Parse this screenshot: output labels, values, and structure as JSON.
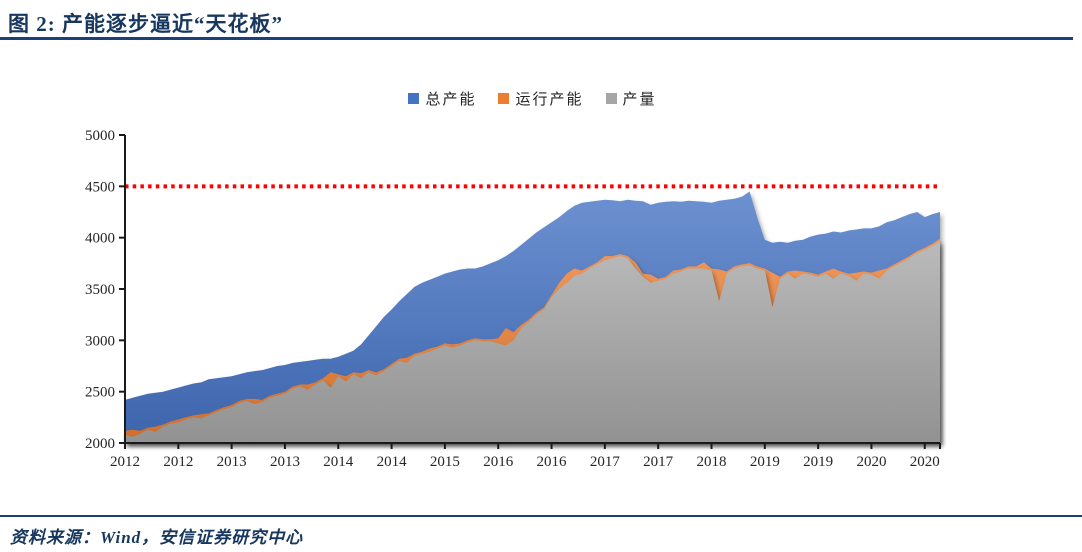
{
  "title": {
    "text": "图 2: 产能逐步逼近“天花板”"
  },
  "colors": {
    "title_text": "#17375e",
    "rule_navy": "#1e3f7d",
    "axis": "#1a1a1a",
    "tick_label": "#262626",
    "reference_red": "#ff0000",
    "series_blue": "#4472C4",
    "series_orange": "#ED7D31",
    "series_gray": "#A6A6A6"
  },
  "legend": [
    {
      "label": "总产能",
      "color": "#4472C4"
    },
    {
      "label": "运行产能",
      "color": "#ED7D31"
    },
    {
      "label": "产量",
      "color": "#A6A6A6"
    }
  ],
  "source": {
    "text": "资料来源：Wind，安信证券研究中心"
  },
  "chart_data": {
    "type": "area",
    "title": "产能逐步逼近“天花板”",
    "legend_position": "top",
    "grid": false,
    "x_start": "2012-01",
    "x_freq": "monthly",
    "x_tick_interval_months": 7,
    "x_tick_labels": [
      "2012",
      "2012",
      "2013",
      "2013",
      "2014",
      "2014",
      "2015",
      "2016",
      "2016",
      "2017",
      "2017",
      "2018",
      "2019",
      "2019",
      "2020",
      "2020"
    ],
    "y_ticks": [
      2000,
      2500,
      3000,
      3500,
      4000,
      4500,
      5000
    ],
    "ylim": [
      2000,
      5000
    ],
    "reference_line": {
      "value": 4500,
      "color": "#ff0000",
      "style": "dotted"
    },
    "series": [
      {
        "name": "总产能",
        "color": "#4472C4",
        "values": [
          2420,
          2440,
          2460,
          2480,
          2490,
          2500,
          2520,
          2540,
          2560,
          2580,
          2590,
          2620,
          2630,
          2640,
          2650,
          2670,
          2690,
          2700,
          2710,
          2730,
          2750,
          2760,
          2780,
          2790,
          2800,
          2810,
          2820,
          2820,
          2840,
          2870,
          2900,
          2960,
          3050,
          3140,
          3230,
          3300,
          3380,
          3450,
          3520,
          3560,
          3590,
          3620,
          3650,
          3670,
          3690,
          3700,
          3700,
          3720,
          3750,
          3780,
          3820,
          3870,
          3930,
          3990,
          4050,
          4100,
          4150,
          4200,
          4260,
          4310,
          4340,
          4350,
          4360,
          4370,
          4365,
          4355,
          4370,
          4360,
          4355,
          4320,
          4340,
          4350,
          4355,
          4350,
          4360,
          4355,
          4350,
          4340,
          4360,
          4370,
          4380,
          4400,
          4450,
          4200,
          3980,
          3950,
          3960,
          3950,
          3970,
          3980,
          4010,
          4030,
          4040,
          4060,
          4050,
          4070,
          4080,
          4090,
          4090,
          4110,
          4150,
          4170,
          4200,
          4230,
          4250,
          4200,
          4230,
          4250
        ]
      },
      {
        "name": "运行产能",
        "color": "#ED7D31",
        "values": [
          2120,
          2130,
          2120,
          2150,
          2160,
          2180,
          2210,
          2230,
          2250,
          2270,
          2280,
          2290,
          2320,
          2350,
          2370,
          2410,
          2430,
          2430,
          2420,
          2460,
          2480,
          2500,
          2550,
          2570,
          2570,
          2590,
          2630,
          2690,
          2670,
          2650,
          2690,
          2680,
          2710,
          2690,
          2720,
          2770,
          2820,
          2830,
          2870,
          2890,
          2920,
          2940,
          2970,
          2960,
          2970,
          3000,
          3020,
          3010,
          3010,
          3020,
          3120,
          3080,
          3150,
          3200,
          3270,
          3320,
          3440,
          3560,
          3650,
          3700,
          3680,
          3720,
          3760,
          3820,
          3820,
          3840,
          3820,
          3760,
          3650,
          3640,
          3600,
          3620,
          3680,
          3690,
          3720,
          3720,
          3760,
          3700,
          3690,
          3670,
          3720,
          3740,
          3750,
          3720,
          3700,
          3660,
          3620,
          3670,
          3680,
          3670,
          3660,
          3640,
          3670,
          3700,
          3670,
          3650,
          3660,
          3670,
          3660,
          3680,
          3700,
          3740,
          3780,
          3820,
          3870,
          3900,
          3940,
          3990
        ]
      },
      {
        "name": "产量",
        "color": "#A6A6A6",
        "values": [
          2080,
          2060,
          2090,
          2130,
          2110,
          2160,
          2190,
          2200,
          2230,
          2250,
          2240,
          2270,
          2300,
          2330,
          2350,
          2390,
          2410,
          2380,
          2400,
          2440,
          2460,
          2480,
          2530,
          2550,
          2520,
          2570,
          2610,
          2540,
          2650,
          2600,
          2670,
          2630,
          2690,
          2660,
          2700,
          2750,
          2800,
          2780,
          2850,
          2870,
          2890,
          2920,
          2950,
          2930,
          2950,
          2980,
          3000,
          2990,
          2990,
          2970,
          2950,
          3000,
          3120,
          3180,
          3250,
          3300,
          3420,
          3500,
          3560,
          3630,
          3650,
          3700,
          3740,
          3780,
          3800,
          3820,
          3800,
          3700,
          3620,
          3560,
          3580,
          3600,
          3650,
          3670,
          3700,
          3700,
          3700,
          3680,
          3380,
          3650,
          3700,
          3720,
          3730,
          3700,
          3680,
          3320,
          3600,
          3650,
          3600,
          3650,
          3640,
          3620,
          3650,
          3600,
          3650,
          3630,
          3580,
          3650,
          3640,
          3600,
          3680,
          3720,
          3760,
          3800,
          3850,
          3880,
          3920,
          3960
        ]
      }
    ]
  }
}
